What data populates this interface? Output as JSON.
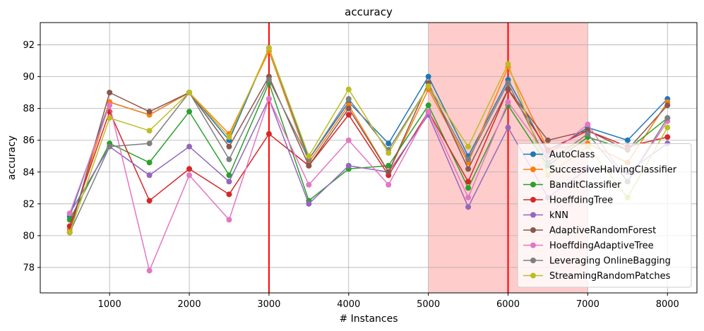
{
  "chart_data": {
    "type": "line",
    "title": "accuracy",
    "xlabel": "# Instances",
    "ylabel": "accuracy",
    "xlim": [
      130,
      8370
    ],
    "ylim": [
      76.4,
      93.4
    ],
    "x_ticks": [
      1000,
      2000,
      3000,
      4000,
      5000,
      6000,
      7000,
      8000
    ],
    "y_ticks": [
      78,
      80,
      82,
      84,
      86,
      88,
      90,
      92
    ],
    "grid": true,
    "legend_position": "lower right",
    "vertical_lines": [
      {
        "x": 3000,
        "color": "#ff0000"
      },
      {
        "x": 6000,
        "color": "#ff0000"
      }
    ],
    "shaded_region": {
      "x_start": 5000,
      "x_end": 7000,
      "color": "#ffcccc"
    },
    "x": [
      500,
      1000,
      1500,
      2000,
      2500,
      3000,
      3500,
      4000,
      4500,
      5000,
      5500,
      6000,
      6500,
      7000,
      7500,
      8000
    ],
    "series": [
      {
        "name": "AutoClass",
        "color": "#1f77b4",
        "values": [
          81.2,
          88.4,
          87.6,
          89.0,
          86.0,
          91.8,
          84.8,
          88.4,
          85.8,
          90.0,
          85.0,
          89.8,
          85.2,
          86.8,
          86.0,
          88.6
        ]
      },
      {
        "name": "SuccessiveHalvingClassifier",
        "color": "#ff7f0e",
        "values": [
          80.4,
          88.4,
          87.6,
          89.0,
          86.4,
          91.6,
          84.6,
          88.2,
          84.0,
          89.2,
          84.6,
          90.6,
          85.4,
          85.8,
          84.6,
          88.4
        ]
      },
      {
        "name": "BanditClassifier",
        "color": "#2ca02c",
        "values": [
          81.0,
          85.8,
          84.6,
          87.8,
          83.8,
          89.6,
          82.2,
          84.2,
          84.4,
          88.2,
          83.0,
          88.2,
          84.4,
          86.2,
          85.4,
          87.4
        ]
      },
      {
        "name": "HoeffdingTree",
        "color": "#d62728",
        "values": [
          80.6,
          87.8,
          82.2,
          84.2,
          82.6,
          86.4,
          84.4,
          87.6,
          83.8,
          87.8,
          83.4,
          89.2,
          85.4,
          86.6,
          85.6,
          86.2
        ]
      },
      {
        "name": "kNN",
        "color": "#9467bd",
        "values": [
          81.4,
          85.6,
          83.8,
          85.6,
          83.4,
          88.6,
          82.0,
          84.4,
          84.0,
          87.6,
          81.8,
          86.8,
          82.4,
          84.2,
          84.0,
          85.8
        ]
      },
      {
        "name": "AdaptiveRandomForest",
        "color": "#8c564b",
        "values": [
          80.2,
          89.0,
          87.8,
          89.0,
          85.6,
          90.0,
          84.4,
          88.0,
          84.0,
          89.6,
          84.2,
          89.2,
          86.0,
          86.6,
          85.4,
          88.2
        ]
      },
      {
        "name": "HoeffdingAdaptiveTree",
        "color": "#e377c2",
        "values": [
          81.4,
          88.2,
          77.8,
          83.8,
          81.0,
          88.6,
          83.2,
          86.0,
          83.2,
          87.8,
          82.4,
          88.4,
          85.0,
          87.0,
          83.4,
          87.2
        ]
      },
      {
        "name": "Leveraging OnlineBagging",
        "color": "#7f7f7f",
        "values": [
          80.2,
          85.6,
          85.8,
          89.0,
          84.8,
          89.8,
          84.8,
          88.6,
          85.4,
          89.4,
          84.8,
          89.6,
          84.6,
          86.4,
          83.4,
          87.4
        ]
      },
      {
        "name": "StreamingRandomPatches",
        "color": "#bcbd22",
        "values": [
          80.2,
          87.4,
          86.6,
          89.0,
          86.2,
          91.8,
          85.0,
          89.2,
          85.2,
          89.4,
          85.6,
          90.8,
          83.8,
          85.6,
          82.4,
          86.8
        ]
      }
    ]
  }
}
